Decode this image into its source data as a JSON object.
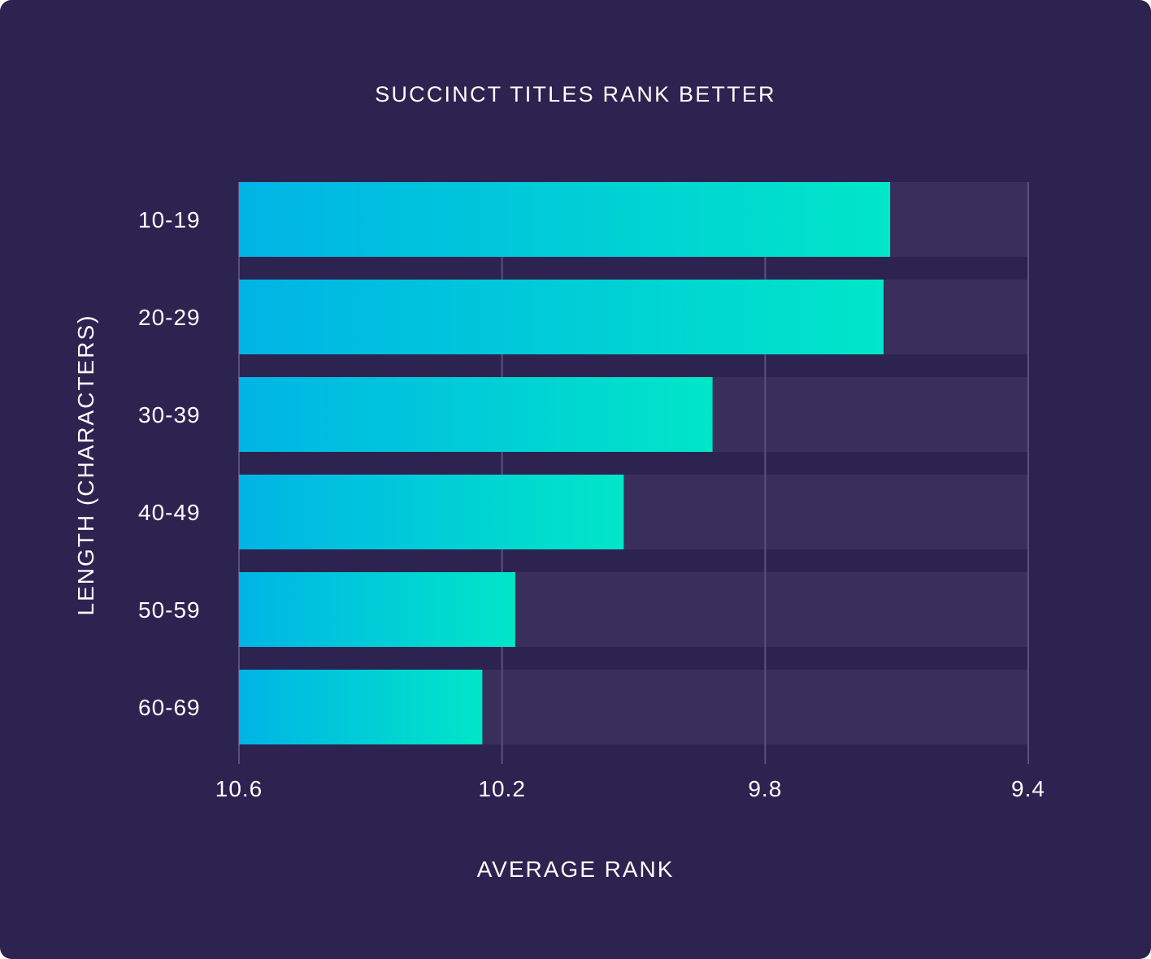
{
  "chart_data": {
    "type": "bar",
    "orientation": "horizontal",
    "title": "SUCCINCT TITLES RANK BETTER",
    "xlabel": "AVERAGE RANK",
    "ylabel": "LENGTH (CHARACTERS)",
    "categories": [
      "10-19",
      "20-29",
      "30-39",
      "40-49",
      "50-59",
      "60-69"
    ],
    "values": [
      9.61,
      9.62,
      9.88,
      10.015,
      10.18,
      10.23
    ],
    "xlim": [
      10.6,
      9.4
    ],
    "xticks": [
      "10.6",
      "10.2",
      "9.8",
      "9.4"
    ],
    "xtick_values": [
      10.6,
      10.2,
      9.8,
      9.4
    ],
    "x_axis_reversed": true,
    "grid": true,
    "colors": {
      "background": "#2d2350",
      "track": "#3a2f5c",
      "grid": "#5a5080",
      "bar_start": "#00b4e6",
      "bar_end": "#00e6c8"
    }
  }
}
